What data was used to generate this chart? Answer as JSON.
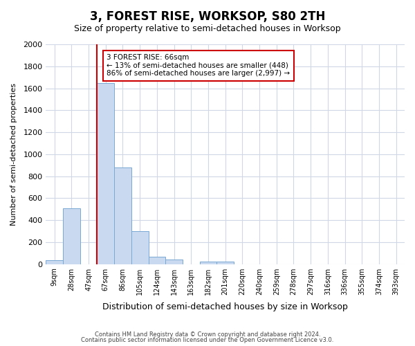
{
  "title": "3, FOREST RISE, WORKSOP, S80 2TH",
  "subtitle": "Size of property relative to semi-detached houses in Worksop",
  "xlabel": "Distribution of semi-detached houses by size in Worksop",
  "ylabel": "Number of semi-detached properties",
  "bin_labels": [
    "9sqm",
    "28sqm",
    "47sqm",
    "67sqm",
    "86sqm",
    "105sqm",
    "124sqm",
    "143sqm",
    "163sqm",
    "182sqm",
    "201sqm",
    "220sqm",
    "240sqm",
    "259sqm",
    "278sqm",
    "297sqm",
    "316sqm",
    "336sqm",
    "355sqm",
    "374sqm",
    "393sqm"
  ],
  "bar_values": [
    35,
    505,
    0,
    1645,
    880,
    300,
    70,
    40,
    0,
    25,
    20,
    0,
    0,
    0,
    0,
    0,
    0,
    0,
    0,
    0,
    0
  ],
  "bar_color": "#c9d9f0",
  "bar_edge_color": "#7aa8d4",
  "property_label": "3 FOREST RISE: 66sqm",
  "pct_smaller": 13,
  "pct_larger": 86,
  "n_smaller": 448,
  "n_larger": 2997,
  "annotation_line_color": "#cc0000",
  "annotation_box_color": "#cc0000",
  "ylim": [
    0,
    2000
  ],
  "yticks": [
    0,
    200,
    400,
    600,
    800,
    1000,
    1200,
    1400,
    1600,
    1800,
    2000
  ],
  "footer_line1": "Contains HM Land Registry data © Crown copyright and database right 2024.",
  "footer_line2": "Contains public sector information licensed under the Open Government Licence v3.0.",
  "background_color": "#ffffff",
  "grid_color": "#d0d8e8"
}
